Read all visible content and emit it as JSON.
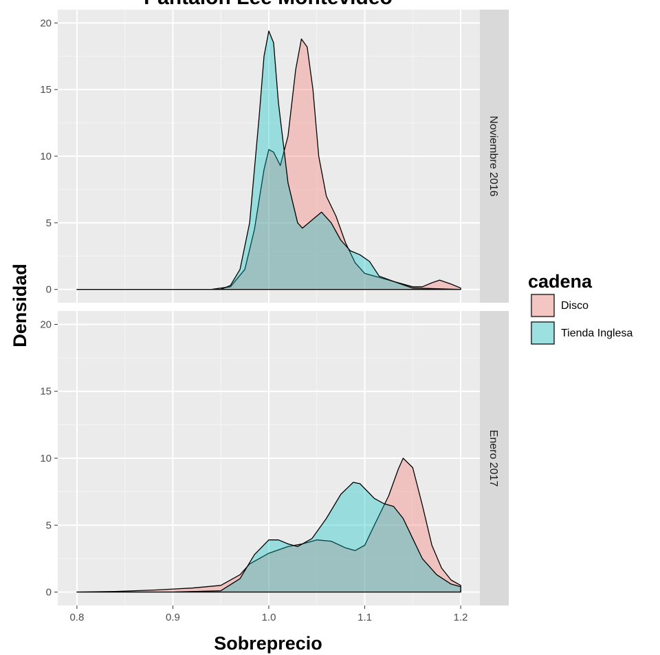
{
  "chart_data": {
    "type": "area",
    "title": "Pantalón Lee Montevideo",
    "xlabel": "Sobreprecio",
    "ylabel": "Densidad",
    "xlim": [
      0.8,
      1.2
    ],
    "ylim": [
      0,
      20
    ],
    "x_ticks": [
      0.8,
      0.9,
      1.0,
      1.1,
      1.2
    ],
    "x_tick_labels": [
      "0.8",
      "0.9",
      "1.0",
      "1.1",
      "1.2"
    ],
    "y_ticks": [
      0,
      5,
      10,
      15,
      20
    ],
    "y_tick_labels": [
      "0",
      "5",
      "10",
      "15",
      "20"
    ],
    "grid": true,
    "legend": {
      "title": "cadena",
      "position": "right",
      "entries": [
        {
          "label": "Disco",
          "color": "#F8766D"
        },
        {
          "label": "Tienda Inglesa",
          "color": "#00BFC4"
        }
      ]
    },
    "facets": [
      {
        "label": "Noviembre 2016",
        "series": [
          {
            "name": "Disco",
            "color": "#F8766D",
            "points": [
              [
                0.8,
                0
              ],
              [
                0.94,
                0
              ],
              [
                0.96,
                0.2
              ],
              [
                0.975,
                1.5
              ],
              [
                0.985,
                4.5
              ],
              [
                0.995,
                9
              ],
              [
                1.0,
                10.5
              ],
              [
                1.005,
                10.3
              ],
              [
                1.012,
                9.3
              ],
              [
                1.02,
                11.5
              ],
              [
                1.028,
                16.5
              ],
              [
                1.034,
                18.8
              ],
              [
                1.04,
                18.2
              ],
              [
                1.046,
                15
              ],
              [
                1.052,
                10
              ],
              [
                1.06,
                7
              ],
              [
                1.07,
                5.5
              ],
              [
                1.08,
                3.5
              ],
              [
                1.09,
                2
              ],
              [
                1.1,
                1.2
              ],
              [
                1.11,
                1
              ],
              [
                1.12,
                0.8
              ],
              [
                1.135,
                0.5
              ],
              [
                1.15,
                0.2
              ],
              [
                1.16,
                0.2
              ],
              [
                1.17,
                0.5
              ],
              [
                1.178,
                0.7
              ],
              [
                1.19,
                0.4
              ],
              [
                1.2,
                0.1
              ]
            ]
          },
          {
            "name": "Tienda Inglesa",
            "color": "#00BFC4",
            "points": [
              [
                0.8,
                0
              ],
              [
                0.95,
                0
              ],
              [
                0.96,
                0.3
              ],
              [
                0.97,
                1.5
              ],
              [
                0.98,
                5
              ],
              [
                0.99,
                13
              ],
              [
                0.995,
                17.5
              ],
              [
                1.0,
                19.4
              ],
              [
                1.005,
                18.5
              ],
              [
                1.01,
                14
              ],
              [
                1.02,
                8
              ],
              [
                1.03,
                5
              ],
              [
                1.035,
                4.6
              ],
              [
                1.045,
                5.2
              ],
              [
                1.055,
                5.8
              ],
              [
                1.065,
                5
              ],
              [
                1.075,
                3.7
              ],
              [
                1.085,
                2.9
              ],
              [
                1.095,
                2.6
              ],
              [
                1.105,
                2.1
              ],
              [
                1.115,
                1
              ],
              [
                1.13,
                0.6
              ],
              [
                1.15,
                0.1
              ],
              [
                1.2,
                0
              ]
            ]
          }
        ]
      },
      {
        "label": "Enero 2017",
        "series": [
          {
            "name": "Disco",
            "color": "#F8766D",
            "points": [
              [
                0.8,
                0
              ],
              [
                0.84,
                0.05
              ],
              [
                0.88,
                0.15
              ],
              [
                0.92,
                0.3
              ],
              [
                0.95,
                0.5
              ],
              [
                0.97,
                1.3
              ],
              [
                0.98,
                2.1
              ],
              [
                1.0,
                2.9
              ],
              [
                1.02,
                3.4
              ],
              [
                1.035,
                3.6
              ],
              [
                1.05,
                3.9
              ],
              [
                1.065,
                3.8
              ],
              [
                1.08,
                3.3
              ],
              [
                1.09,
                3.1
              ],
              [
                1.1,
                3.5
              ],
              [
                1.11,
                5
              ],
              [
                1.125,
                7.2
              ],
              [
                1.135,
                9.2
              ],
              [
                1.14,
                10
              ],
              [
                1.15,
                9.3
              ],
              [
                1.16,
                6.5
              ],
              [
                1.17,
                3.5
              ],
              [
                1.18,
                1.8
              ],
              [
                1.19,
                0.9
              ],
              [
                1.2,
                0.5
              ]
            ]
          },
          {
            "name": "Tienda Inglesa",
            "color": "#00BFC4",
            "points": [
              [
                0.8,
                0
              ],
              [
                0.9,
                0
              ],
              [
                0.95,
                0.1
              ],
              [
                0.97,
                1
              ],
              [
                0.985,
                2.8
              ],
              [
                1.0,
                3.9
              ],
              [
                1.01,
                3.9
              ],
              [
                1.02,
                3.6
              ],
              [
                1.03,
                3.4
              ],
              [
                1.045,
                4
              ],
              [
                1.06,
                5.5
              ],
              [
                1.075,
                7.3
              ],
              [
                1.088,
                8.2
              ],
              [
                1.095,
                8.1
              ],
              [
                1.11,
                7
              ],
              [
                1.12,
                6.6
              ],
              [
                1.13,
                6.4
              ],
              [
                1.14,
                5.5
              ],
              [
                1.15,
                4
              ],
              [
                1.16,
                2.5
              ],
              [
                1.175,
                1.3
              ],
              [
                1.19,
                0.6
              ],
              [
                1.2,
                0.4
              ]
            ]
          }
        ]
      }
    ]
  }
}
